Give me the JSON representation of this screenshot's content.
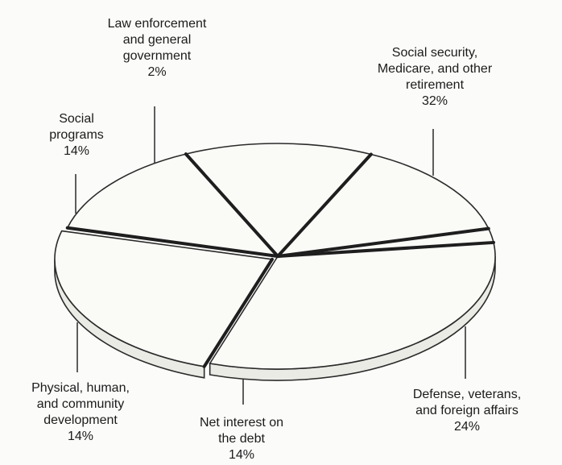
{
  "chart_data": {
    "type": "pie",
    "title": "",
    "slices": [
      {
        "lines": [
          "Social security,",
          "Medicare, and other",
          "retirement"
        ],
        "value": 32,
        "value_label": "32%"
      },
      {
        "lines": [
          "Defense, veterans,",
          "and foreign affairs"
        ],
        "value": 24,
        "value_label": "24%"
      },
      {
        "lines": [
          "Net interest on",
          "the debt"
        ],
        "value": 14,
        "value_label": "14%"
      },
      {
        "lines": [
          "Physical, human,",
          "and community",
          "development"
        ],
        "value": 14,
        "value_label": "14%"
      },
      {
        "lines": [
          "Social",
          "programs"
        ],
        "value": 14,
        "value_label": "14%"
      },
      {
        "lines": [
          "Law enforcement",
          "and general",
          "government"
        ],
        "value": 2,
        "value_label": "2%"
      }
    ],
    "colors": {
      "fill": "#fafaf7",
      "side": "#ebebe6",
      "outline": "#2a2a2a",
      "divider": "#1e1e1e"
    }
  }
}
